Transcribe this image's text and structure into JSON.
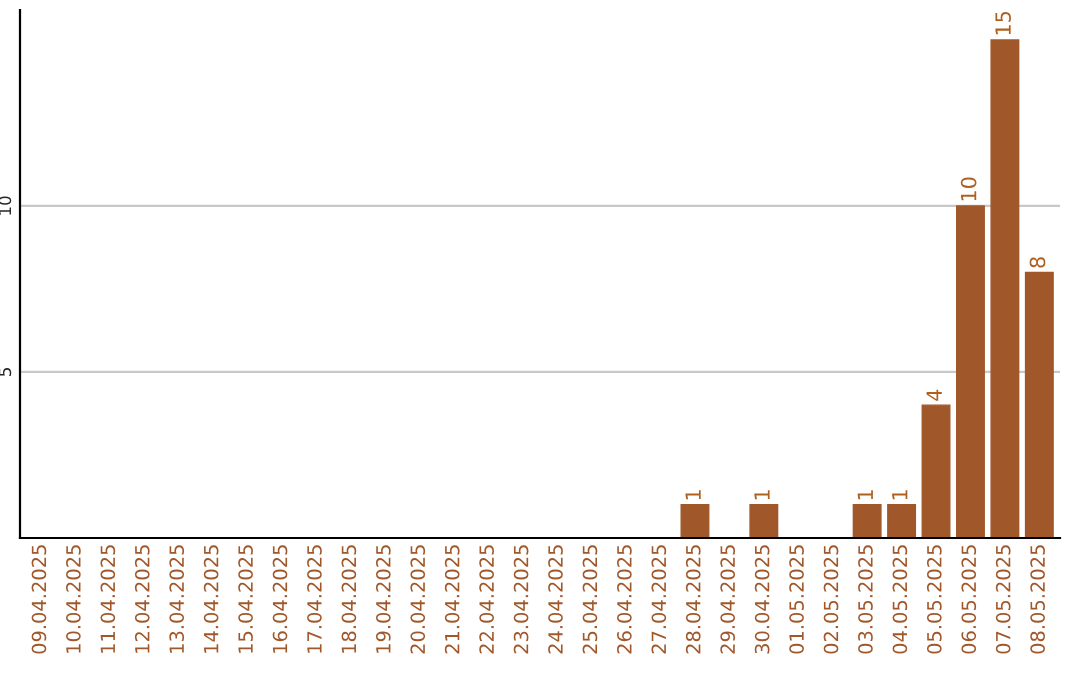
{
  "chart_data": {
    "type": "bar",
    "categories": [
      "09.04.2025",
      "10.04.2025",
      "11.04.2025",
      "12.04.2025",
      "13.04.2025",
      "14.04.2025",
      "15.04.2025",
      "16.04.2025",
      "17.04.2025",
      "18.04.2025",
      "19.04.2025",
      "20.04.2025",
      "21.04.2025",
      "22.04.2025",
      "23.04.2025",
      "24.04.2025",
      "25.04.2025",
      "26.04.2025",
      "27.04.2025",
      "28.04.2025",
      "29.04.2025",
      "30.04.2025",
      "01.05.2025",
      "02.05.2025",
      "03.05.2025",
      "04.05.2025",
      "05.05.2025",
      "06.05.2025",
      "07.05.2025",
      "08.05.2025"
    ],
    "values": [
      0,
      0,
      0,
      0,
      0,
      0,
      0,
      0,
      0,
      0,
      0,
      0,
      0,
      0,
      0,
      0,
      0,
      0,
      0,
      1,
      0,
      1,
      0,
      0,
      1,
      1,
      4,
      10,
      15,
      8
    ],
    "value_labels": [
      null,
      null,
      null,
      null,
      null,
      null,
      null,
      null,
      null,
      null,
      null,
      null,
      null,
      null,
      null,
      null,
      null,
      null,
      null,
      "1",
      null,
      "1",
      null,
      null,
      "1",
      "1",
      "4",
      "10",
      "15",
      "8"
    ],
    "color": "#a0582a",
    "ylim": [
      0,
      15.9
    ],
    "yticks": [
      5,
      10
    ],
    "grid": "y",
    "legend": false
  }
}
